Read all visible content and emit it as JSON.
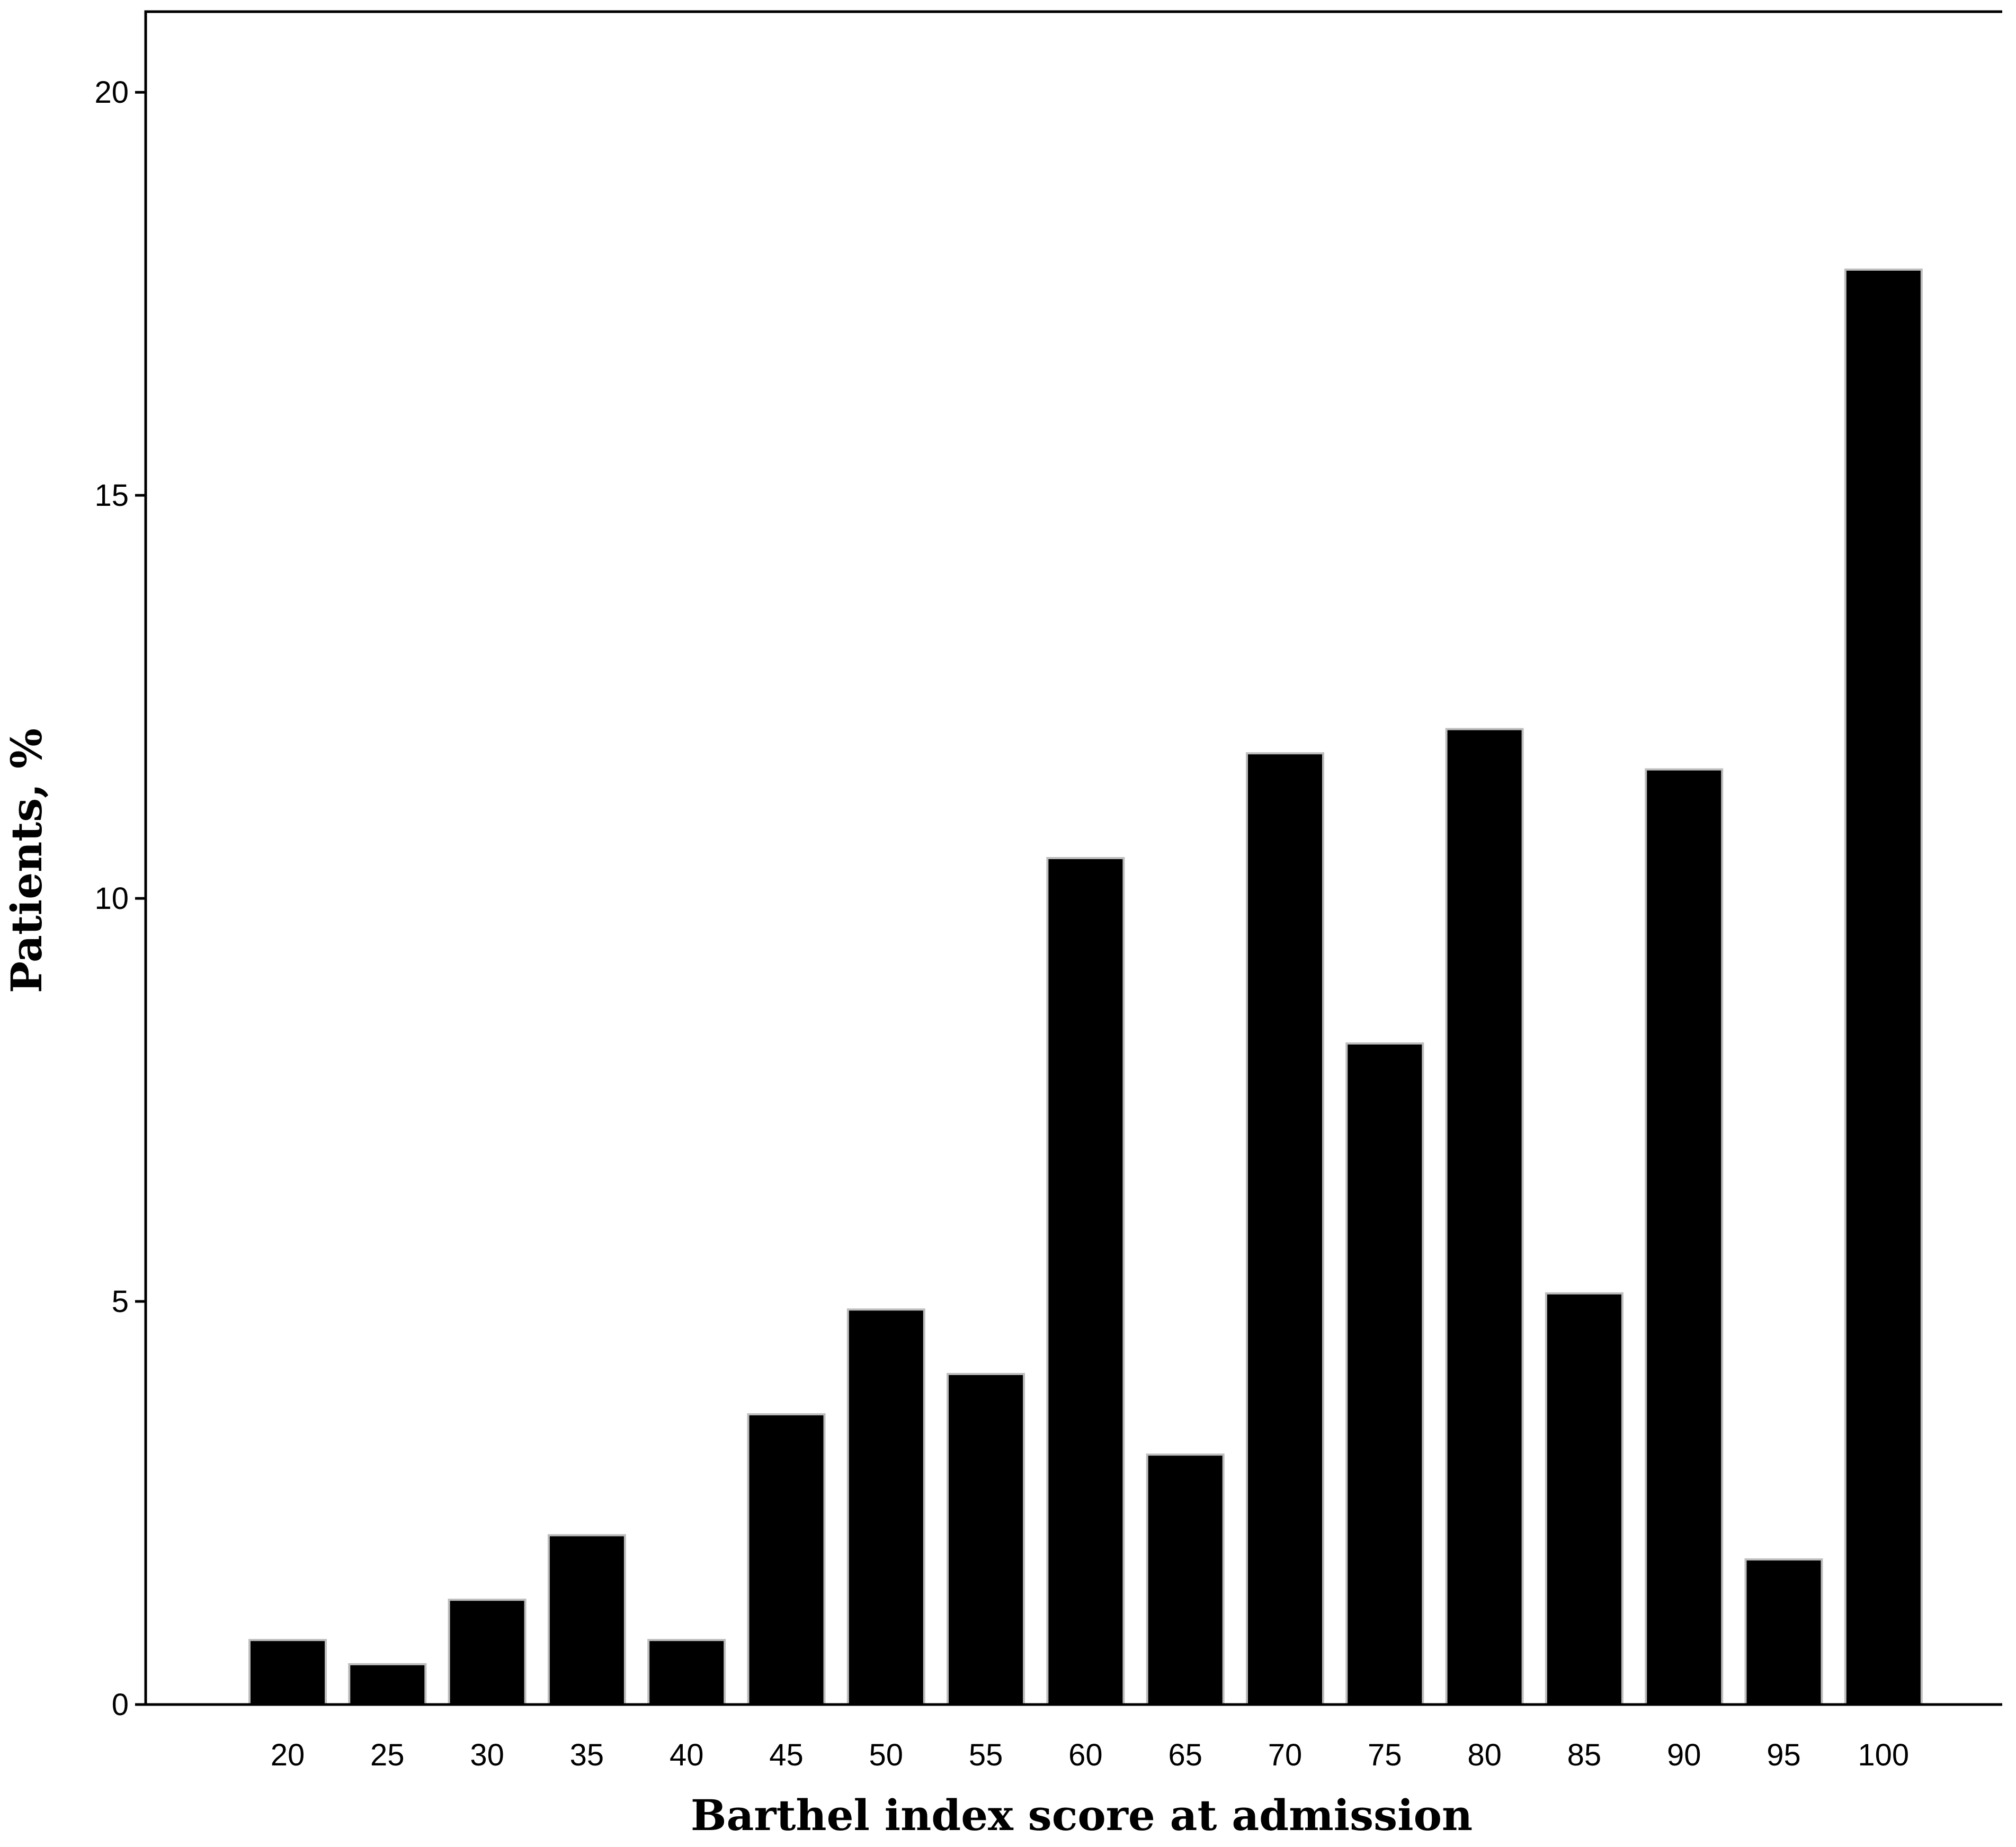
{
  "chart_data": {
    "type": "bar",
    "categories": [
      "20",
      "25",
      "30",
      "35",
      "40",
      "45",
      "50",
      "55",
      "60",
      "65",
      "70",
      "75",
      "80",
      "85",
      "90",
      "95",
      "100"
    ],
    "values": [
      0.8,
      0.5,
      1.3,
      2.1,
      0.8,
      3.6,
      4.9,
      4.1,
      10.5,
      3.1,
      11.8,
      8.2,
      12.1,
      5.1,
      11.6,
      1.8,
      17.8
    ],
    "xlabel": "Barthel index score at admission",
    "ylabel": "Patients, %",
    "ylim": [
      0,
      21
    ],
    "yticks": [
      "0",
      "5",
      "10",
      "15",
      "20"
    ],
    "bar_color": "#000000",
    "grid": false
  }
}
